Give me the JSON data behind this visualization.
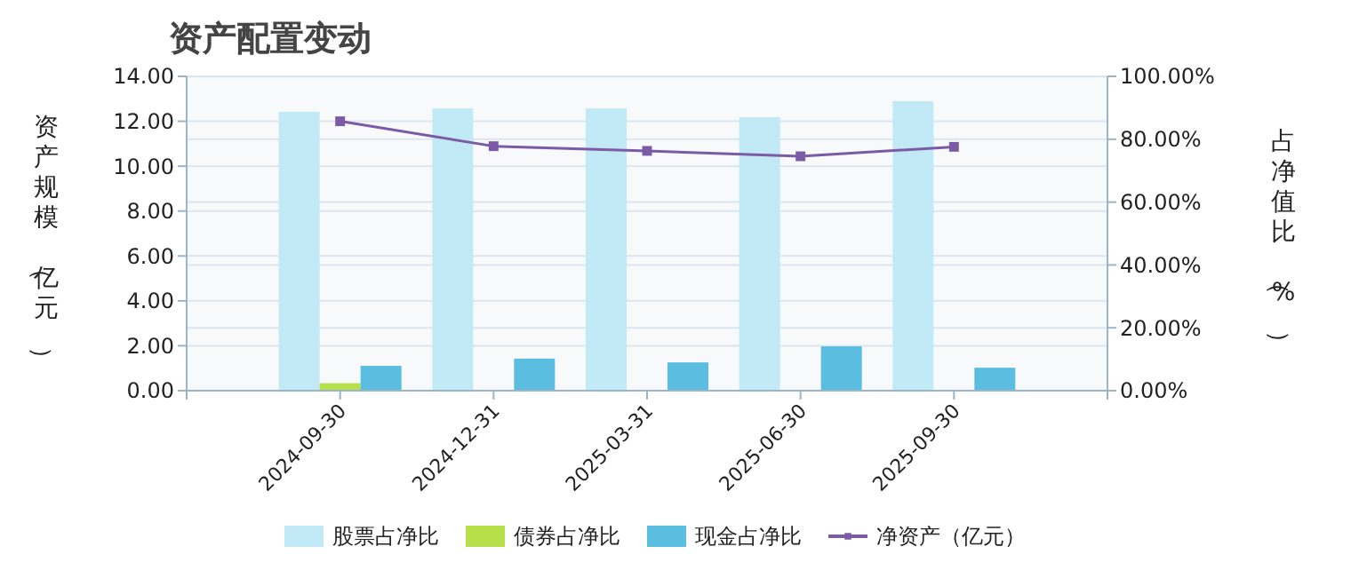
{
  "chart_data": {
    "type": "bar",
    "title": "资产配置变动",
    "ylabel": "资产规模（亿元）",
    "y2label": "占净值比（%）",
    "categories": [
      "2024-09-30",
      "2024-12-31",
      "2025-03-31",
      "2025-06-30",
      "2025-09-30"
    ],
    "series": [
      {
        "name": "股票占净比",
        "axis": "y2",
        "color": "#c2eaf6",
        "values": [
          88.7,
          89.8,
          89.8,
          87.0,
          92.1
        ]
      },
      {
        "name": "债券占净比",
        "axis": "y2",
        "color": "#b5e04a",
        "values": [
          2.4,
          null,
          null,
          null,
          null
        ]
      },
      {
        "name": "现金占净比",
        "axis": "y2",
        "color": "#5bbde0",
        "values": [
          7.9,
          10.2,
          9.0,
          14.1,
          7.3
        ]
      },
      {
        "name": "净资产（亿元）",
        "type": "line",
        "axis": "y",
        "color": "#7b5ba6",
        "values": [
          12.0,
          10.89,
          10.68,
          10.44,
          10.86
        ]
      }
    ],
    "ylim": [
      0,
      14
    ],
    "yticks": [
      {
        "value": 0,
        "label": "0.00"
      },
      {
        "value": 2,
        "label": "2.00"
      },
      {
        "value": 4,
        "label": "4.00"
      },
      {
        "value": 6,
        "label": "6.00"
      },
      {
        "value": 8,
        "label": "8.00"
      },
      {
        "value": 10,
        "label": "10.00"
      },
      {
        "value": 12,
        "label": "12.00"
      },
      {
        "value": 14,
        "label": "14.00"
      }
    ],
    "y2lim": [
      0,
      100
    ],
    "y2ticks": [
      {
        "value": 0,
        "label": "0.00%"
      },
      {
        "value": 20,
        "label": "20.00%"
      },
      {
        "value": 40,
        "label": "40.00%"
      },
      {
        "value": 60,
        "label": "60.00%"
      },
      {
        "value": 80,
        "label": "80.00%"
      },
      {
        "value": 100,
        "label": "100.00%"
      }
    ],
    "grid": "y",
    "legend": "bottom",
    "marker": "square"
  }
}
